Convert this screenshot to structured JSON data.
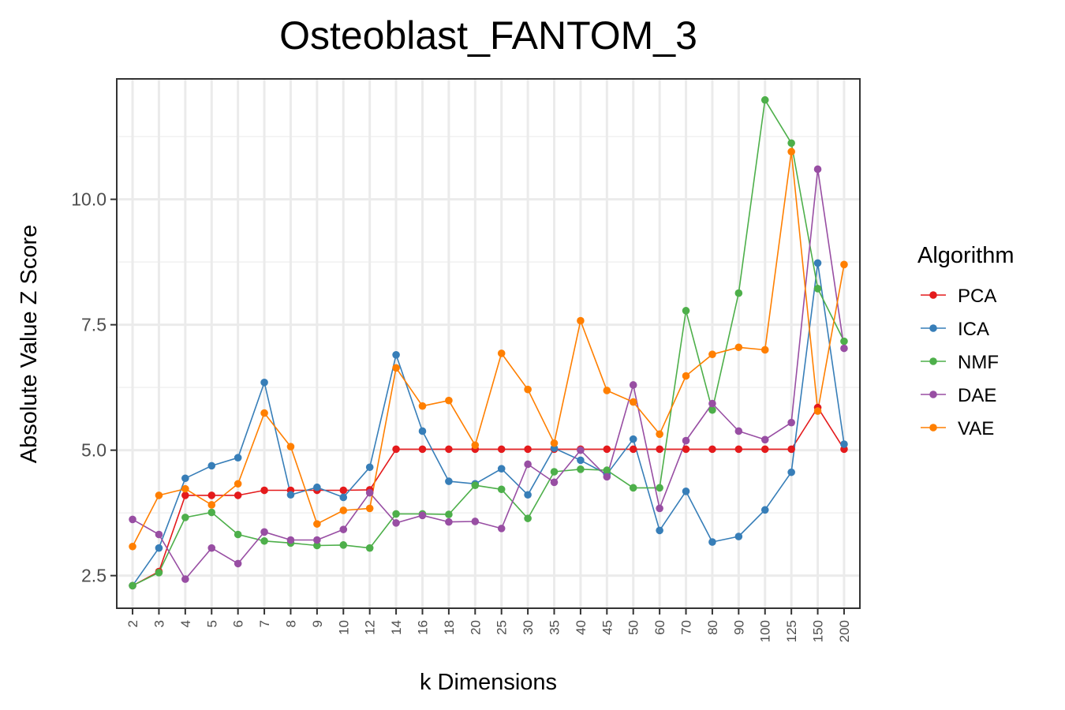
{
  "chart_data": {
    "type": "line",
    "title": "Osteoblast_FANTOM_3",
    "xlabel": "k Dimensions",
    "ylabel": "Absolute Value Z Score",
    "categories": [
      "2",
      "3",
      "4",
      "5",
      "6",
      "7",
      "8",
      "9",
      "10",
      "12",
      "14",
      "16",
      "18",
      "20",
      "25",
      "30",
      "35",
      "40",
      "45",
      "50",
      "60",
      "70",
      "80",
      "90",
      "100",
      "125",
      "150",
      "200"
    ],
    "y_ticks": [
      2.5,
      5.0,
      7.5,
      10.0
    ],
    "y_tick_labels": [
      "2.5",
      "5.0",
      "7.5",
      "10.0"
    ],
    "ylim": [
      1.85,
      12.4
    ],
    "grid": true,
    "legend_title": "Algorithm",
    "legend_position": "right",
    "series": [
      {
        "name": "PCA",
        "color": "#e41a1c",
        "values": [
          2.3,
          2.58,
          4.1,
          4.1,
          4.1,
          4.2,
          4.2,
          4.2,
          4.2,
          4.21,
          5.02,
          5.02,
          5.02,
          5.02,
          5.02,
          5.02,
          5.02,
          5.02,
          5.02,
          5.02,
          5.02,
          5.02,
          5.02,
          5.02,
          5.02,
          5.02,
          5.85,
          5.02
        ]
      },
      {
        "name": "ICA",
        "color": "#377eb8",
        "values": [
          2.3,
          3.05,
          4.44,
          4.69,
          4.85,
          6.35,
          4.11,
          4.26,
          4.06,
          4.66,
          6.9,
          5.38,
          4.38,
          4.33,
          4.63,
          4.11,
          5.04,
          4.8,
          4.52,
          5.22,
          3.4,
          4.18,
          3.17,
          3.28,
          3.81,
          4.56,
          8.73,
          5.12
        ]
      },
      {
        "name": "NMF",
        "color": "#4daf4a",
        "values": [
          2.3,
          2.56,
          3.66,
          3.76,
          3.32,
          3.19,
          3.15,
          3.1,
          3.11,
          3.05,
          3.73,
          3.73,
          3.72,
          4.3,
          4.22,
          3.64,
          4.57,
          4.62,
          4.6,
          4.25,
          4.25,
          7.78,
          5.8,
          8.13,
          11.98,
          11.12,
          8.22,
          7.17
        ]
      },
      {
        "name": "DAE",
        "color": "#984ea3",
        "values": [
          3.62,
          3.32,
          2.43,
          3.05,
          2.74,
          3.37,
          3.21,
          3.21,
          3.42,
          4.15,
          3.55,
          3.7,
          3.57,
          3.58,
          3.44,
          4.72,
          4.36,
          5.0,
          4.47,
          6.3,
          3.84,
          5.19,
          5.93,
          5.38,
          5.21,
          5.55,
          10.6,
          7.03
        ]
      },
      {
        "name": "VAE",
        "color": "#ff7f00",
        "values": [
          3.08,
          4.1,
          4.23,
          3.91,
          4.33,
          5.74,
          5.07,
          3.53,
          3.8,
          3.84,
          6.64,
          5.88,
          5.99,
          5.1,
          6.93,
          6.21,
          5.14,
          7.58,
          6.19,
          5.96,
          5.32,
          6.48,
          6.91,
          7.05,
          7.0,
          10.95,
          5.78,
          8.7
        ]
      }
    ]
  }
}
